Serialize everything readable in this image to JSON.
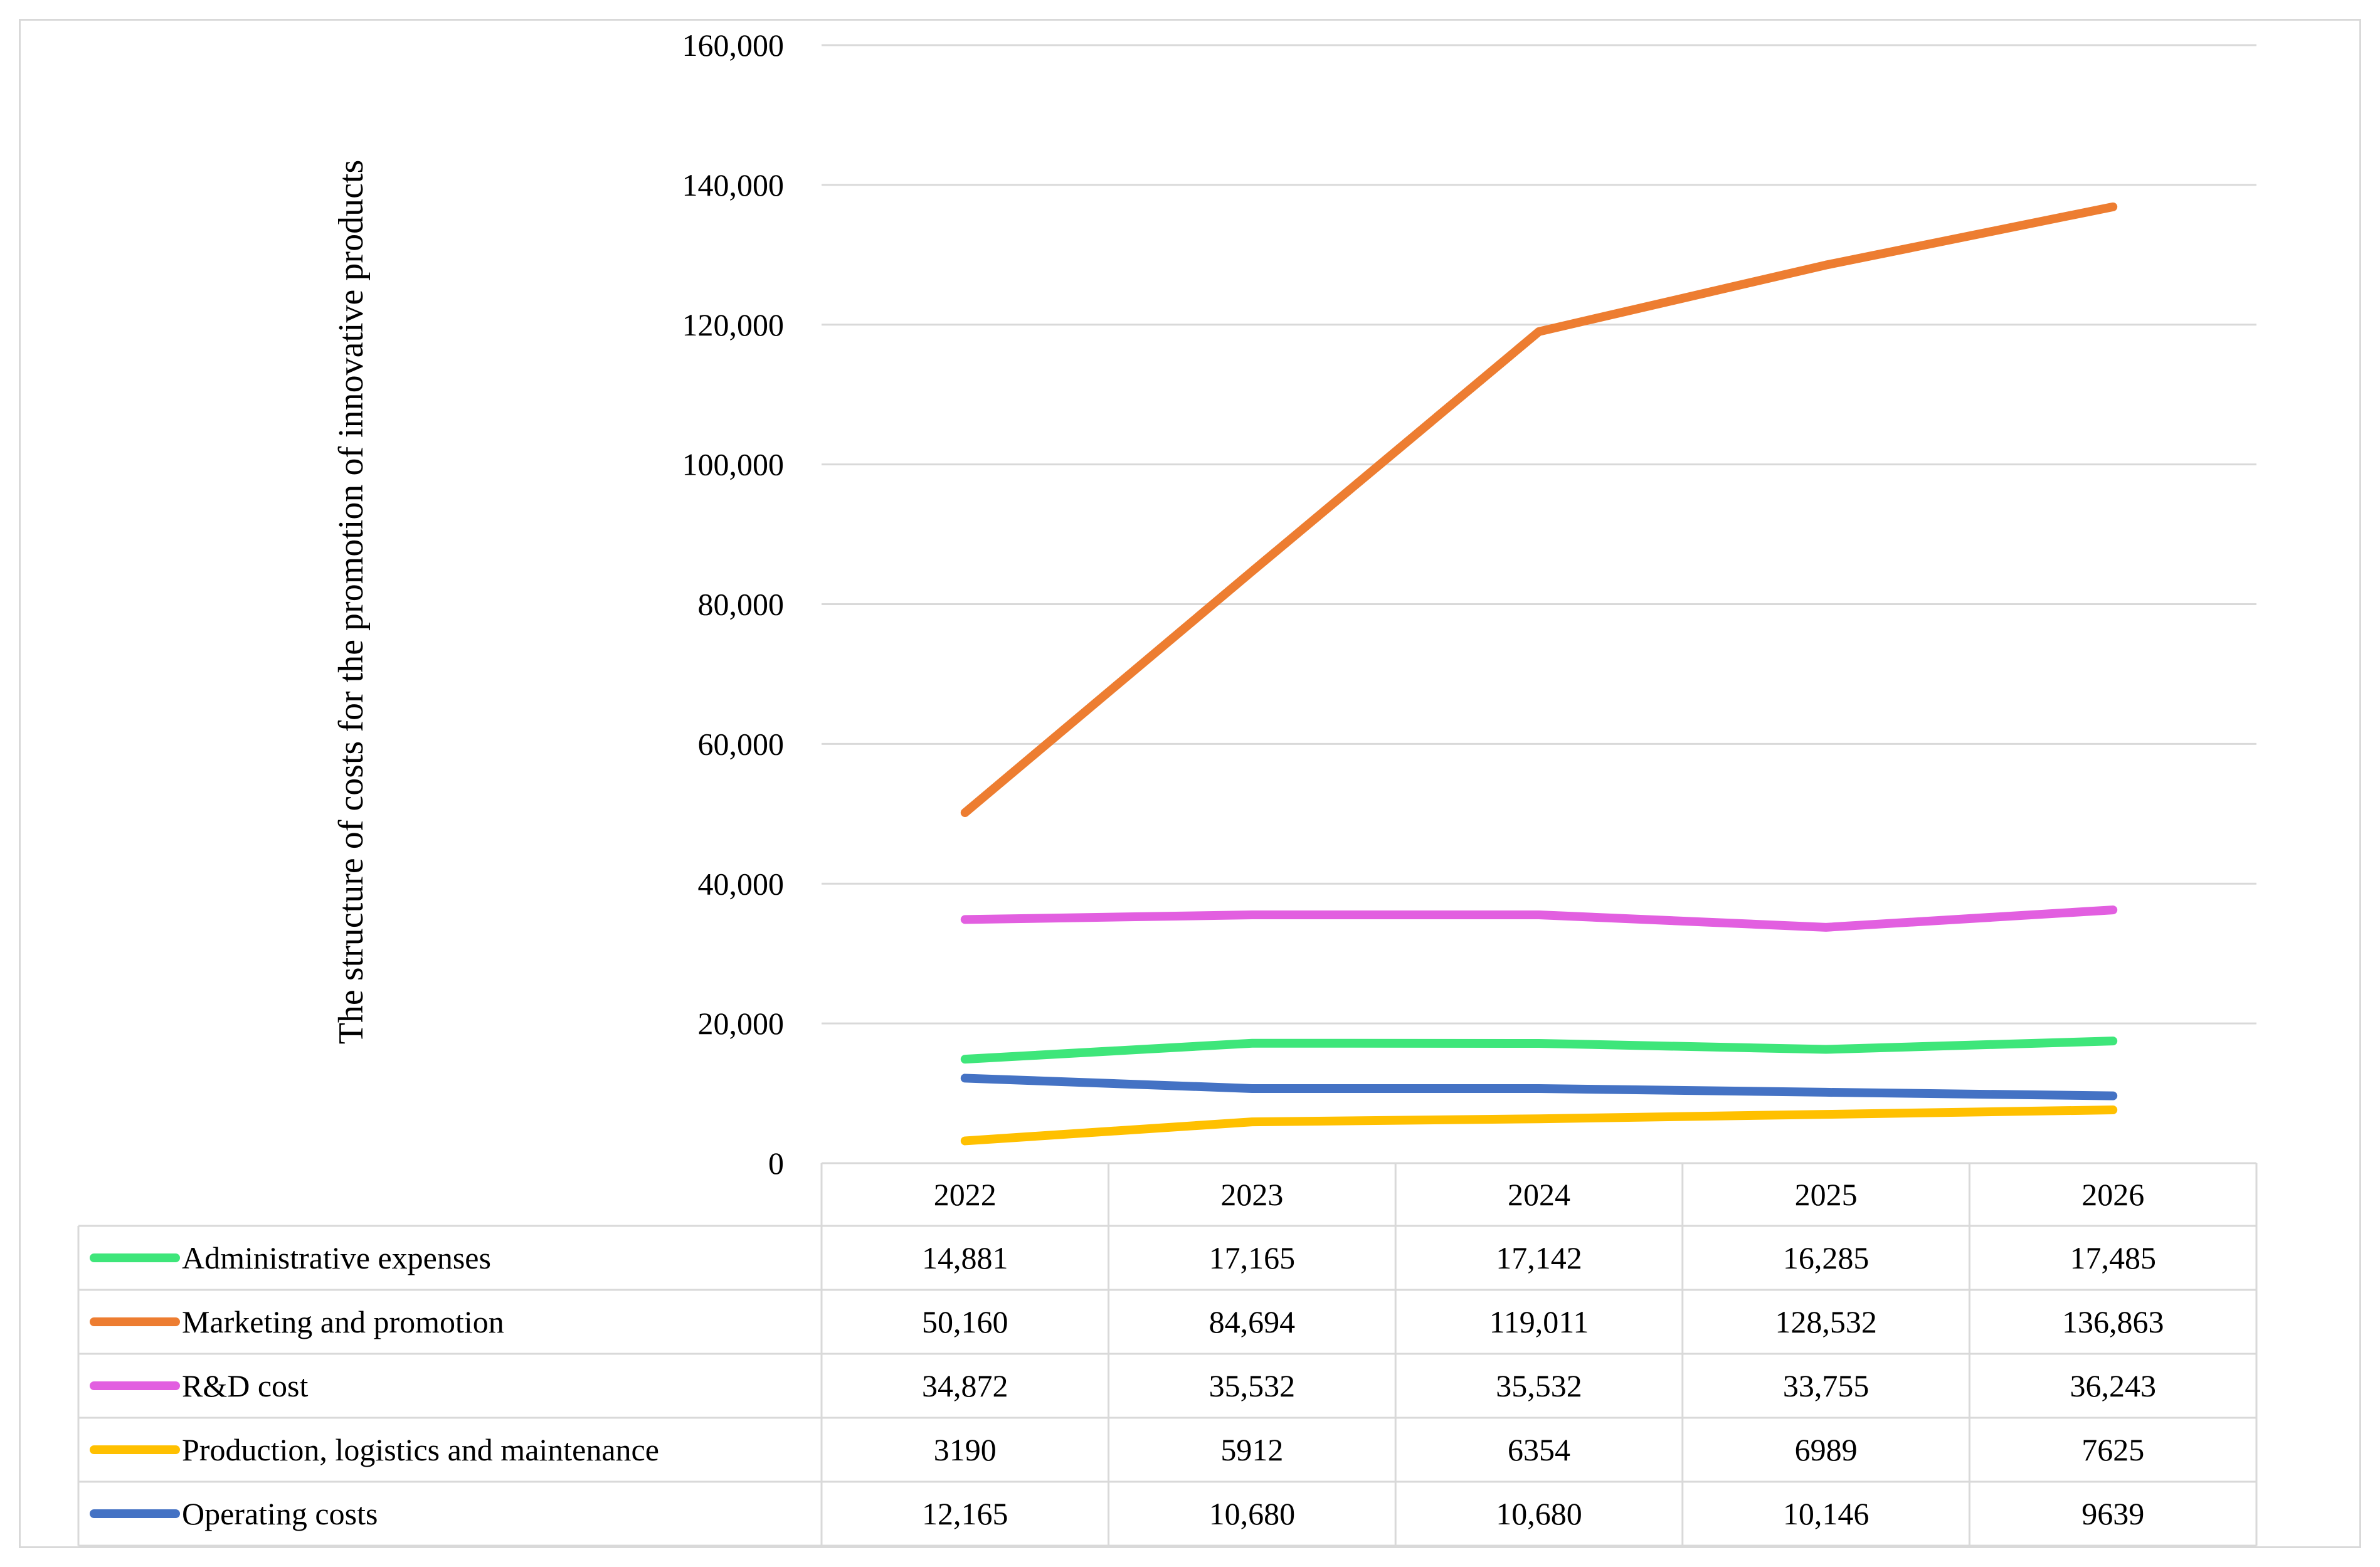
{
  "chart_data": {
    "type": "line",
    "title": "",
    "ylabel": "The structure of costs for  the promotion of innovative products",
    "xlabel": "",
    "categories": [
      "2022",
      "2023",
      "2024",
      "2025",
      "2026"
    ],
    "ylim": [
      0,
      160000
    ],
    "yticks": [
      0,
      20000,
      40000,
      60000,
      80000,
      100000,
      120000,
      140000,
      160000
    ],
    "ytick_labels": [
      "0",
      "20,000",
      "40,000",
      "60,000",
      "80,000",
      "100,000",
      "120,000",
      "140,000",
      "160,000"
    ],
    "grid": true,
    "legend": "data-table",
    "series": [
      {
        "name": "Administrative expenses",
        "color": "#3ee67a",
        "values": [
          14881,
          17165,
          17142,
          16285,
          17485
        ],
        "labels": [
          "14,881",
          "17,165",
          "17,142",
          "16,285",
          "17,485"
        ]
      },
      {
        "name": "Marketing and promotion",
        "color": "#ed7d31",
        "values": [
          50160,
          84694,
          119011,
          128532,
          136863
        ],
        "labels": [
          "50,160",
          "84,694",
          "119,011",
          "128,532",
          "136,863"
        ]
      },
      {
        "name": "R&D cost",
        "color": "#e25fe0",
        "values": [
          34872,
          35532,
          35532,
          33755,
          36243
        ],
        "labels": [
          "34,872",
          "35,532",
          "35,532",
          "33,755",
          "36,243"
        ]
      },
      {
        "name": "Production, logistics and maintenance",
        "color": "#ffc000",
        "values": [
          3190,
          5912,
          6354,
          6989,
          7625
        ],
        "labels": [
          "3190",
          "5912",
          "6354",
          "6989",
          "7625"
        ]
      },
      {
        "name": "Operating costs",
        "color": "#4472c4",
        "values": [
          12165,
          10680,
          10680,
          10146,
          9639
        ],
        "labels": [
          "12,165",
          "10,680",
          "10,680",
          "10,146",
          "9639"
        ]
      }
    ]
  }
}
